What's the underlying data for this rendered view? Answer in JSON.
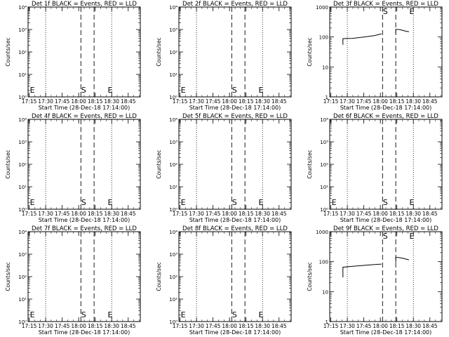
{
  "chart_data": [
    {
      "type": "line",
      "title": "Det 1f BLACK = Events, RED = LLD",
      "ylabel": "Counts/sec",
      "xlabel": "Start Time (28-Dec-18 17:14:00)",
      "yscale": "log",
      "ylim": [
        1,
        10000
      ],
      "ytick_labels": [
        "10⁰",
        "10¹",
        "10²",
        "10³",
        "10⁴"
      ],
      "xtick_labels": [
        "17:15",
        "17:30",
        "17:45",
        "18:00",
        "18:15",
        "18:30",
        "18:45"
      ],
      "series": [],
      "markers": [
        {
          "label": "E",
          "x": "17:15"
        },
        {
          "label": "S",
          "x": "18:02"
        },
        {
          "label": "E",
          "x": "18:26"
        }
      ]
    },
    {
      "type": "line",
      "title": "Det 2f BLACK = Events, RED = LLD",
      "ylabel": "Counts/sec",
      "xlabel": "Start Time (28-Dec-18 17:14:00)",
      "yscale": "log",
      "ylim": [
        1,
        10000
      ],
      "ytick_labels": [
        "10⁰",
        "10¹",
        "10²",
        "10³",
        "10⁴"
      ],
      "xtick_labels": [
        "17:15",
        "17:30",
        "17:45",
        "18:00",
        "18:15",
        "18:30",
        "18:45"
      ],
      "series": [],
      "markers": [
        {
          "label": "E",
          "x": "17:15"
        },
        {
          "label": "S",
          "x": "18:02"
        },
        {
          "label": "E",
          "x": "18:26"
        }
      ]
    },
    {
      "type": "line",
      "title": "Det 3f BLACK = Events, RED = LLD",
      "ylabel": "Counts/sec",
      "xlabel": "Start Time (28-Dec-18 17:14:00)",
      "yscale": "log",
      "ylim": [
        1,
        1000
      ],
      "ytick_labels": [
        "1",
        "10",
        "100",
        "1000"
      ],
      "xtick_labels": [
        "17:15",
        "17:30",
        "17:45",
        "18:00",
        "18:15",
        "18:30",
        "18:45"
      ],
      "series": [
        {
          "x": [
            "17:26",
            "17:26",
            "17:35",
            "17:45",
            "17:55",
            "18:00",
            "18:01"
          ],
          "values": [
            55,
            88,
            90,
            100,
            112,
            125,
            125
          ]
        },
        {
          "x": [
            "18:14",
            "18:14",
            "18:18",
            "18:22",
            "18:26"
          ],
          "values": [
            130,
            180,
            175,
            160,
            150
          ]
        }
      ],
      "markers": [
        {
          "label": "S",
          "x": "18:02"
        },
        {
          "label": "E",
          "x": "18:26"
        }
      ]
    },
    {
      "type": "line",
      "title": "Det 4f BLACK = Events, RED = LLD",
      "ylabel": "Counts/sec",
      "xlabel": "Start Time (28-Dec-18 17:14:00)",
      "yscale": "log",
      "ylim": [
        1,
        10000
      ],
      "ytick_labels": [
        "10⁰",
        "10¹",
        "10²",
        "10³",
        "10⁴"
      ],
      "xtick_labels": [
        "17:15",
        "17:30",
        "17:45",
        "18:00",
        "18:15",
        "18:30",
        "18:45"
      ],
      "series": [],
      "markers": [
        {
          "label": "E",
          "x": "17:15"
        },
        {
          "label": "S",
          "x": "18:02"
        },
        {
          "label": "E",
          "x": "18:26"
        }
      ]
    },
    {
      "type": "line",
      "title": "Det 5f BLACK = Events, RED = LLD",
      "ylabel": "Counts/sec",
      "xlabel": "Start Time (28-Dec-18 17:14:00)",
      "yscale": "log",
      "ylim": [
        1,
        10000
      ],
      "ytick_labels": [
        "10⁰",
        "10¹",
        "10²",
        "10³",
        "10⁴"
      ],
      "xtick_labels": [
        "17:15",
        "17:30",
        "17:45",
        "18:00",
        "18:15",
        "18:30",
        "18:45"
      ],
      "series": [],
      "markers": [
        {
          "label": "E",
          "x": "17:15"
        },
        {
          "label": "S",
          "x": "18:02"
        },
        {
          "label": "E",
          "x": "18:26"
        }
      ]
    },
    {
      "type": "line",
      "title": "Det 6f BLACK = Events, RED = LLD",
      "ylabel": "Counts/sec",
      "xlabel": "Start Time (28-Dec-18 17:14:00)",
      "yscale": "log",
      "ylim": [
        1,
        10000
      ],
      "ytick_labels": [
        "10⁰",
        "10¹",
        "10²",
        "10³",
        "10⁴"
      ],
      "xtick_labels": [
        "17:15",
        "17:30",
        "17:45",
        "18:00",
        "18:15",
        "18:30",
        "18:45"
      ],
      "series": [],
      "markers": [
        {
          "label": "E",
          "x": "17:15"
        },
        {
          "label": "S",
          "x": "18:02"
        },
        {
          "label": "E",
          "x": "18:26"
        }
      ]
    },
    {
      "type": "line",
      "title": "Det 7f BLACK = Events, RED = LLD",
      "ylabel": "Counts/sec",
      "xlabel": "Start Time (28-Dec-18 17:14:00)",
      "yscale": "log",
      "ylim": [
        1,
        10000
      ],
      "ytick_labels": [
        "10⁰",
        "10¹",
        "10²",
        "10³",
        "10⁴"
      ],
      "xtick_labels": [
        "17:15",
        "17:30",
        "17:45",
        "18:00",
        "18:15",
        "18:30",
        "18:45"
      ],
      "series": [],
      "markers": [
        {
          "label": "E",
          "x": "17:15"
        },
        {
          "label": "S",
          "x": "18:02"
        },
        {
          "label": "E",
          "x": "18:26"
        }
      ]
    },
    {
      "type": "line",
      "title": "Det 8f BLACK = Events, RED = LLD",
      "ylabel": "Counts/sec",
      "xlabel": "Start Time (28-Dec-18 17:14:00)",
      "yscale": "log",
      "ylim": [
        1,
        10000
      ],
      "ytick_labels": [
        "10⁰",
        "10¹",
        "10²",
        "10³",
        "10⁴"
      ],
      "xtick_labels": [
        "17:15",
        "17:30",
        "17:45",
        "18:00",
        "18:15",
        "18:30",
        "18:45"
      ],
      "series": [],
      "markers": [
        {
          "label": "E",
          "x": "17:15"
        },
        {
          "label": "S",
          "x": "18:02"
        },
        {
          "label": "E",
          "x": "18:26"
        }
      ]
    },
    {
      "type": "line",
      "title": "Det 9f BLACK = Events, RED = LLD",
      "ylabel": "Counts/sec",
      "xlabel": "Start Time (28-Dec-18 17:14:00)",
      "yscale": "log",
      "ylim": [
        1,
        1000
      ],
      "ytick_labels": [
        "1",
        "10",
        "100",
        "1000"
      ],
      "xtick_labels": [
        "17:15",
        "17:30",
        "17:45",
        "18:00",
        "18:15",
        "18:30",
        "18:45"
      ],
      "series": [
        {
          "x": [
            "17:26",
            "17:26",
            "17:35",
            "17:45",
            "17:55",
            "18:00",
            "18:01"
          ],
          "values": [
            30,
            65,
            70,
            75,
            80,
            82,
            82
          ]
        },
        {
          "x": [
            "18:14",
            "18:14",
            "18:18",
            "18:22",
            "18:26"
          ],
          "values": [
            95,
            140,
            135,
            125,
            115
          ]
        }
      ],
      "markers": [
        {
          "label": "S",
          "x": "18:02"
        },
        {
          "label": "E",
          "x": "18:26"
        }
      ]
    }
  ]
}
